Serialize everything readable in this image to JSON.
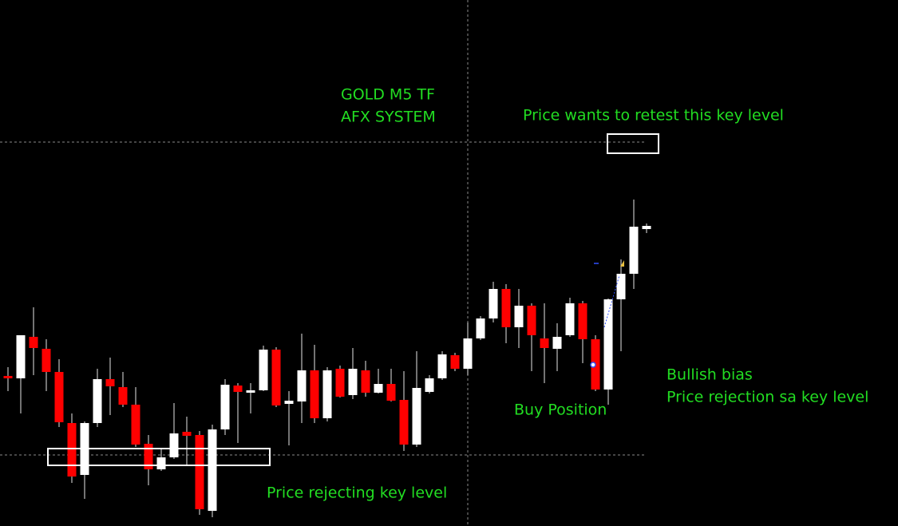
{
  "chart_data": {
    "type": "candlestick",
    "title": "GOLD M5 TF",
    "subtitle": "AFX SYSTEM",
    "annotations": [
      "Price wants to retest this key level",
      "Bullish bias",
      "Price rejection sa key level",
      "Buy Position",
      "Price rejecting key level"
    ],
    "open": [
      188,
      185,
      237,
      222,
      193,
      129,
      64,
      129,
      184,
      174,
      152,
      103,
      71,
      86,
      118,
      114,
      19,
      121,
      176,
      167,
      170,
      221,
      153,
      156,
      195,
      135,
      197,
      164,
      195,
      167,
      178,
      158,
      102,
      168,
      185,
      214,
      197,
      235,
      260,
      297,
      249,
      276,
      235,
      222,
      239,
      279,
      234,
      171,
      284,
      316,
      372
    ],
    "high": [
      199,
      239,
      274,
      234,
      209,
      141,
      131,
      197,
      211,
      193,
      174,
      114,
      96,
      154,
      137,
      119,
      127,
      184,
      179,
      179,
      226,
      224,
      169,
      241,
      227,
      199,
      201,
      223,
      207,
      197,
      197,
      194,
      219,
      189,
      219,
      217,
      255,
      263,
      306,
      303,
      297,
      279,
      279,
      254,
      286,
      282,
      239,
      285,
      334,
      409,
      379
    ],
    "low": [
      169,
      141,
      189,
      169,
      124,
      54,
      34,
      124,
      139,
      149,
      99,
      51,
      69,
      84,
      76,
      14,
      11,
      114,
      104,
      141,
      169,
      149,
      101,
      129,
      129,
      131,
      161,
      159,
      162,
      166,
      156,
      94,
      99,
      166,
      183,
      194,
      189,
      233,
      255,
      229,
      223,
      194,
      179,
      194,
      237,
      204,
      169,
      152,
      219,
      297,
      367
    ],
    "close": [
      185,
      239,
      223,
      193,
      130,
      62,
      129,
      184,
      175,
      152,
      102,
      71,
      86,
      116,
      113,
      21,
      121,
      177,
      168,
      170,
      221,
      151,
      157,
      195,
      135,
      195,
      162,
      197,
      167,
      178,
      157,
      102,
      173,
      185,
      215,
      197,
      235,
      260,
      297,
      249,
      276,
      239,
      223,
      237,
      279,
      234,
      171,
      284,
      316,
      375,
      376
    ],
    "up_color": "#ffffff",
    "down_color": "#ff0000",
    "ylim": [
      0,
      659
    ],
    "key_levels": [
      481,
      89
    ],
    "crosshair_index": 36
  }
}
